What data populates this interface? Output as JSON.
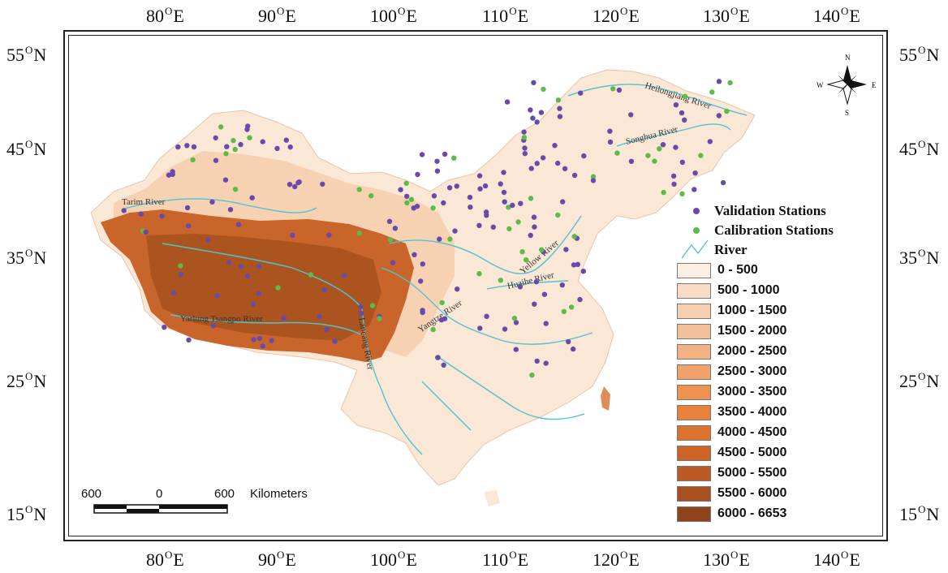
{
  "axes": {
    "lon_labels": [
      {
        "deg": "80",
        "hemi": "E"
      },
      {
        "deg": "90",
        "hemi": "E"
      },
      {
        "deg": "100",
        "hemi": "E"
      },
      {
        "deg": "110",
        "hemi": "E"
      },
      {
        "deg": "120",
        "hemi": "E"
      },
      {
        "deg": "130",
        "hemi": "E"
      },
      {
        "deg": "140",
        "hemi": "E"
      }
    ],
    "lat_labels": [
      {
        "deg": "55",
        "hemi": "N"
      },
      {
        "deg": "45",
        "hemi": "N"
      },
      {
        "deg": "35",
        "hemi": "N"
      },
      {
        "deg": "25",
        "hemi": "N"
      },
      {
        "deg": "15",
        "hemi": "N"
      }
    ],
    "degree_mark": "O"
  },
  "legend": {
    "validation": "Validation Stations",
    "calibration": "Calibration Stations",
    "river": "River",
    "classes": [
      {
        "label": "0 - 500",
        "color": "#fbeee3"
      },
      {
        "label": "500 - 1000",
        "color": "#f8dcc6"
      },
      {
        "label": "1000 - 1500",
        "color": "#f6ceb0"
      },
      {
        "label": "1500 - 2000",
        "color": "#f4c09a"
      },
      {
        "label": "2000 - 2500",
        "color": "#f2b282"
      },
      {
        "label": "2500 - 3000",
        "color": "#f0a26a"
      },
      {
        "label": "3000 - 3500",
        "color": "#ee924f"
      },
      {
        "label": "3500 - 4000",
        "color": "#e8823a"
      },
      {
        "label": "4000 - 4500",
        "color": "#dc722e"
      },
      {
        "label": "4500 - 5000",
        "color": "#cc6428"
      },
      {
        "label": "5000 - 5500",
        "color": "#bb5a24"
      },
      {
        "label": "5500 - 6000",
        "color": "#a84f20"
      },
      {
        "label": "6000 - 6653",
        "color": "#8f431b"
      }
    ],
    "validation_color": "#6a4aa8",
    "calibration_color": "#5dbb4a",
    "river_color": "#4fc4cf"
  },
  "rivers": [
    "Heilongjiang River",
    "Songhua River",
    "Tarim River",
    "Yellow River",
    "Huaihe River",
    "Yangtze River",
    "Yarlung Tsangpo River",
    "Lancang River"
  ],
  "compass": {
    "n": "N",
    "s": "S",
    "e": "E",
    "w": "W"
  },
  "scale_bar": {
    "left": "600",
    "middle": "0",
    "right": "600",
    "unit": "Kilometers"
  }
}
